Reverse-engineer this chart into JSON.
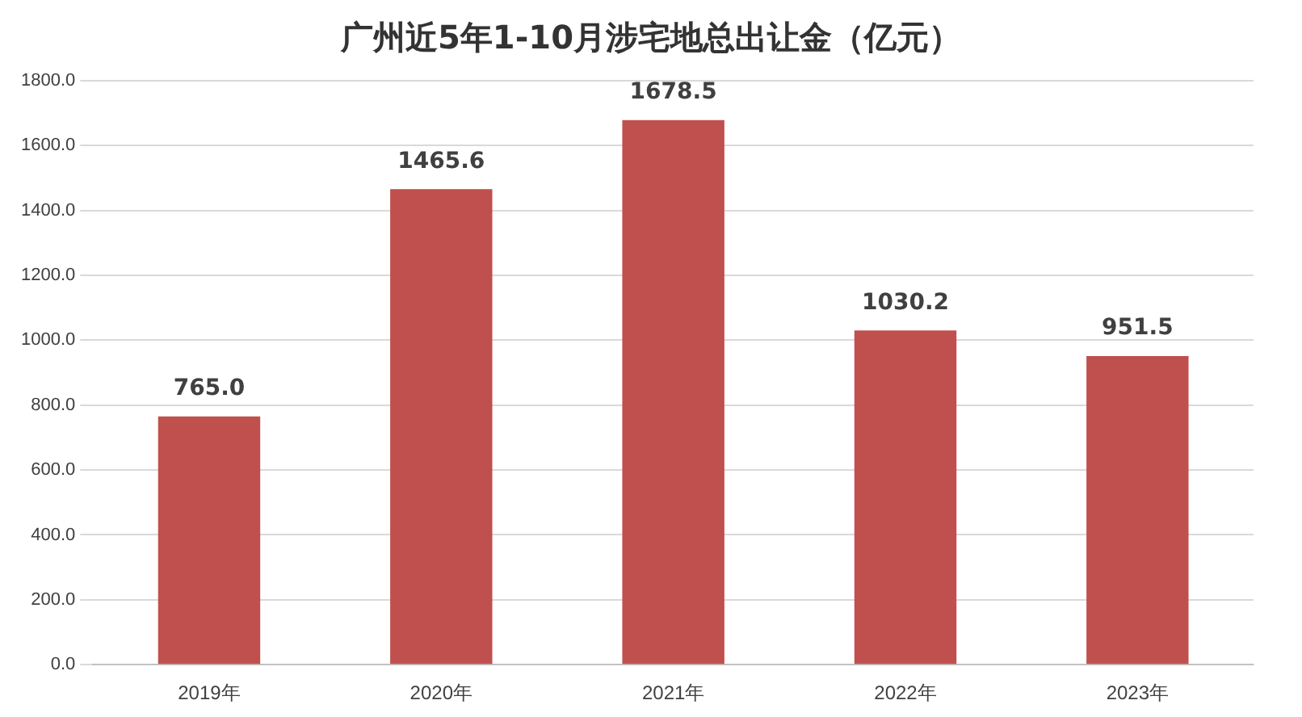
{
  "chart_data": {
    "type": "bar",
    "title": "广州近5年1-10月涉宅地总出让金（亿元）",
    "categories": [
      "2019年",
      "2020年",
      "2021年",
      "2022年",
      "2023年"
    ],
    "values": [
      765.0,
      1465.6,
      1678.5,
      1030.2,
      951.5
    ],
    "value_labels": [
      "765.0",
      "1465.6",
      "1678.5",
      "1030.2",
      "951.5"
    ],
    "color": "#c0504d",
    "ylim": [
      0,
      1800
    ],
    "yticks": [
      {
        "value": 0,
        "label": "0.0"
      },
      {
        "value": 200,
        "label": "200.0"
      },
      {
        "value": 400,
        "label": "400.0"
      },
      {
        "value": 600,
        "label": "600.0"
      },
      {
        "value": 800,
        "label": "800.0"
      },
      {
        "value": 1000,
        "label": "1000.0"
      },
      {
        "value": 1200,
        "label": "1200.0"
      },
      {
        "value": 1400,
        "label": "1400.0"
      },
      {
        "value": 1600,
        "label": "1600.0"
      },
      {
        "value": 1800,
        "label": "1800.0"
      }
    ],
    "grid": "y"
  }
}
